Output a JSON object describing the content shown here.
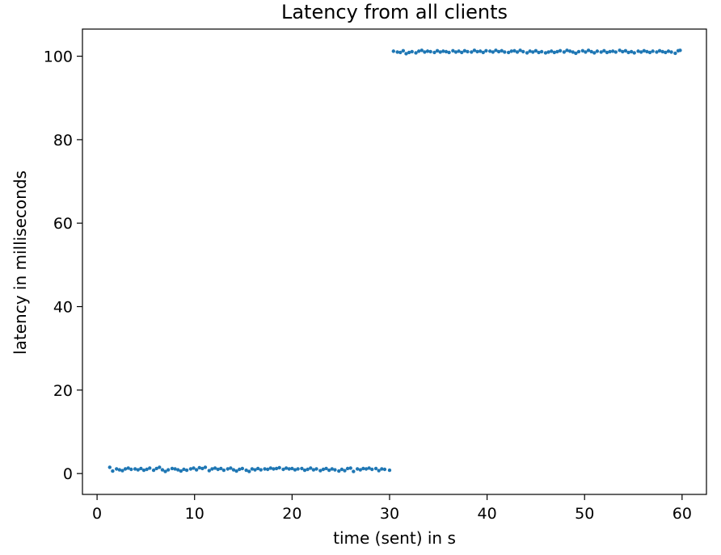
{
  "chart_data": {
    "type": "scatter",
    "title": "Latency from all clients",
    "xlabel": "time (sent) in s",
    "ylabel": "latency in milliseconds",
    "xlim": [
      -1.5,
      62.5
    ],
    "ylim": [
      -5,
      106.5
    ],
    "xticks": [
      0,
      10,
      20,
      30,
      40,
      50,
      60
    ],
    "yticks": [
      0,
      20,
      40,
      60,
      80,
      100
    ],
    "grid": false,
    "marker_color": "#1f77b4",
    "series": [
      {
        "points": [
          [
            1.3,
            1.5
          ],
          [
            1.6,
            0.6
          ],
          [
            2.0,
            1.1
          ],
          [
            2.3,
            0.9
          ],
          [
            2.6,
            0.7
          ],
          [
            2.9,
            1.1
          ],
          [
            3.2,
            1.3
          ],
          [
            3.5,
            1.0
          ],
          [
            3.9,
            1.1
          ],
          [
            4.2,
            0.9
          ],
          [
            4.5,
            1.2
          ],
          [
            4.8,
            0.8
          ],
          [
            5.1,
            1.0
          ],
          [
            5.4,
            1.3
          ],
          [
            5.8,
            0.8
          ],
          [
            6.1,
            1.2
          ],
          [
            6.4,
            1.5
          ],
          [
            6.7,
            0.9
          ],
          [
            7.0,
            0.5
          ],
          [
            7.3,
            0.9
          ],
          [
            7.7,
            1.2
          ],
          [
            8.0,
            1.1
          ],
          [
            8.3,
            0.9
          ],
          [
            8.6,
            0.6
          ],
          [
            8.9,
            1.0
          ],
          [
            9.2,
            0.8
          ],
          [
            9.6,
            1.1
          ],
          [
            9.9,
            1.3
          ],
          [
            10.2,
            0.9
          ],
          [
            10.5,
            1.4
          ],
          [
            10.8,
            1.2
          ],
          [
            11.1,
            1.5
          ],
          [
            11.5,
            0.7
          ],
          [
            11.8,
            1.1
          ],
          [
            12.1,
            1.3
          ],
          [
            12.4,
            1.0
          ],
          [
            12.7,
            1.2
          ],
          [
            13.0,
            0.8
          ],
          [
            13.4,
            1.1
          ],
          [
            13.7,
            1.3
          ],
          [
            14.0,
            0.9
          ],
          [
            14.3,
            0.6
          ],
          [
            14.6,
            1.0
          ],
          [
            14.9,
            1.2
          ],
          [
            15.3,
            0.8
          ],
          [
            15.6,
            0.5
          ],
          [
            15.9,
            1.1
          ],
          [
            16.2,
            0.9
          ],
          [
            16.5,
            1.2
          ],
          [
            16.8,
            0.9
          ],
          [
            17.2,
            1.1
          ],
          [
            17.5,
            1.0
          ],
          [
            17.8,
            1.3
          ],
          [
            18.1,
            1.1
          ],
          [
            18.4,
            1.2
          ],
          [
            18.7,
            1.4
          ],
          [
            19.1,
            1.0
          ],
          [
            19.4,
            1.3
          ],
          [
            19.7,
            1.1
          ],
          [
            20.0,
            1.2
          ],
          [
            20.3,
            0.9
          ],
          [
            20.6,
            1.1
          ],
          [
            21.0,
            1.2
          ],
          [
            21.3,
            0.8
          ],
          [
            21.6,
            1.0
          ],
          [
            21.9,
            1.3
          ],
          [
            22.2,
            0.9
          ],
          [
            22.5,
            1.1
          ],
          [
            22.9,
            0.7
          ],
          [
            23.2,
            1.0
          ],
          [
            23.5,
            1.2
          ],
          [
            23.8,
            0.8
          ],
          [
            24.1,
            1.1
          ],
          [
            24.4,
            0.9
          ],
          [
            24.8,
            0.6
          ],
          [
            25.1,
            1.0
          ],
          [
            25.4,
            0.7
          ],
          [
            25.7,
            1.2
          ],
          [
            26.0,
            1.3
          ],
          [
            26.3,
            0.5
          ],
          [
            26.7,
            1.1
          ],
          [
            27.0,
            0.9
          ],
          [
            27.3,
            1.2
          ],
          [
            27.6,
            1.1
          ],
          [
            27.9,
            1.3
          ],
          [
            28.2,
            1.0
          ],
          [
            28.6,
            1.2
          ],
          [
            28.9,
            0.7
          ],
          [
            29.2,
            1.1
          ],
          [
            29.5,
            1.0
          ],
          [
            30.0,
            0.8
          ]
        ]
      },
      {
        "points": [
          [
            30.4,
            101.2
          ],
          [
            30.8,
            101.0
          ],
          [
            31.1,
            100.9
          ],
          [
            31.4,
            101.3
          ],
          [
            31.7,
            100.6
          ],
          [
            32.0,
            100.9
          ],
          [
            32.3,
            101.1
          ],
          [
            32.7,
            100.8
          ],
          [
            33.0,
            101.2
          ],
          [
            33.3,
            101.4
          ],
          [
            33.6,
            101.0
          ],
          [
            33.9,
            101.2
          ],
          [
            34.2,
            101.1
          ],
          [
            34.6,
            100.9
          ],
          [
            34.9,
            101.3
          ],
          [
            35.2,
            101.0
          ],
          [
            35.5,
            101.2
          ],
          [
            35.8,
            101.1
          ],
          [
            36.1,
            100.9
          ],
          [
            36.5,
            101.3
          ],
          [
            36.8,
            101.0
          ],
          [
            37.1,
            101.2
          ],
          [
            37.4,
            100.9
          ],
          [
            37.7,
            101.3
          ],
          [
            38.0,
            101.1
          ],
          [
            38.4,
            101.0
          ],
          [
            38.7,
            101.4
          ],
          [
            39.0,
            101.1
          ],
          [
            39.3,
            101.2
          ],
          [
            39.6,
            100.9
          ],
          [
            39.9,
            101.3
          ],
          [
            40.3,
            101.2
          ],
          [
            40.6,
            101.0
          ],
          [
            40.9,
            101.4
          ],
          [
            41.2,
            101.1
          ],
          [
            41.5,
            101.3
          ],
          [
            41.8,
            101.0
          ],
          [
            42.2,
            100.9
          ],
          [
            42.5,
            101.2
          ],
          [
            42.8,
            101.3
          ],
          [
            43.1,
            101.0
          ],
          [
            43.4,
            101.4
          ],
          [
            43.7,
            101.1
          ],
          [
            44.1,
            100.8
          ],
          [
            44.4,
            101.2
          ],
          [
            44.7,
            101.0
          ],
          [
            45.0,
            101.3
          ],
          [
            45.3,
            100.9
          ],
          [
            45.6,
            101.1
          ],
          [
            46.0,
            100.8
          ],
          [
            46.3,
            101.0
          ],
          [
            46.6,
            101.2
          ],
          [
            46.9,
            100.9
          ],
          [
            47.2,
            101.1
          ],
          [
            47.5,
            101.3
          ],
          [
            47.9,
            101.0
          ],
          [
            48.2,
            101.4
          ],
          [
            48.5,
            101.2
          ],
          [
            48.8,
            101.0
          ],
          [
            49.1,
            100.7
          ],
          [
            49.4,
            101.1
          ],
          [
            49.8,
            101.3
          ],
          [
            50.1,
            101.0
          ],
          [
            50.4,
            101.4
          ],
          [
            50.7,
            101.1
          ],
          [
            51.0,
            100.8
          ],
          [
            51.3,
            101.2
          ],
          [
            51.7,
            101.0
          ],
          [
            52.0,
            101.3
          ],
          [
            52.3,
            100.9
          ],
          [
            52.6,
            101.1
          ],
          [
            52.9,
            101.2
          ],
          [
            53.2,
            101.0
          ],
          [
            53.6,
            101.4
          ],
          [
            53.9,
            101.1
          ],
          [
            54.2,
            101.3
          ],
          [
            54.5,
            100.9
          ],
          [
            54.8,
            101.1
          ],
          [
            55.1,
            100.8
          ],
          [
            55.5,
            101.2
          ],
          [
            55.8,
            101.0
          ],
          [
            56.1,
            101.3
          ],
          [
            56.4,
            101.1
          ],
          [
            56.7,
            100.9
          ],
          [
            57.0,
            101.2
          ],
          [
            57.4,
            101.0
          ],
          [
            57.7,
            101.3
          ],
          [
            58.0,
            101.1
          ],
          [
            58.3,
            100.9
          ],
          [
            58.6,
            101.2
          ],
          [
            58.9,
            101.0
          ],
          [
            59.3,
            100.7
          ],
          [
            59.6,
            101.3
          ],
          [
            59.8,
            101.4
          ]
        ]
      }
    ]
  }
}
